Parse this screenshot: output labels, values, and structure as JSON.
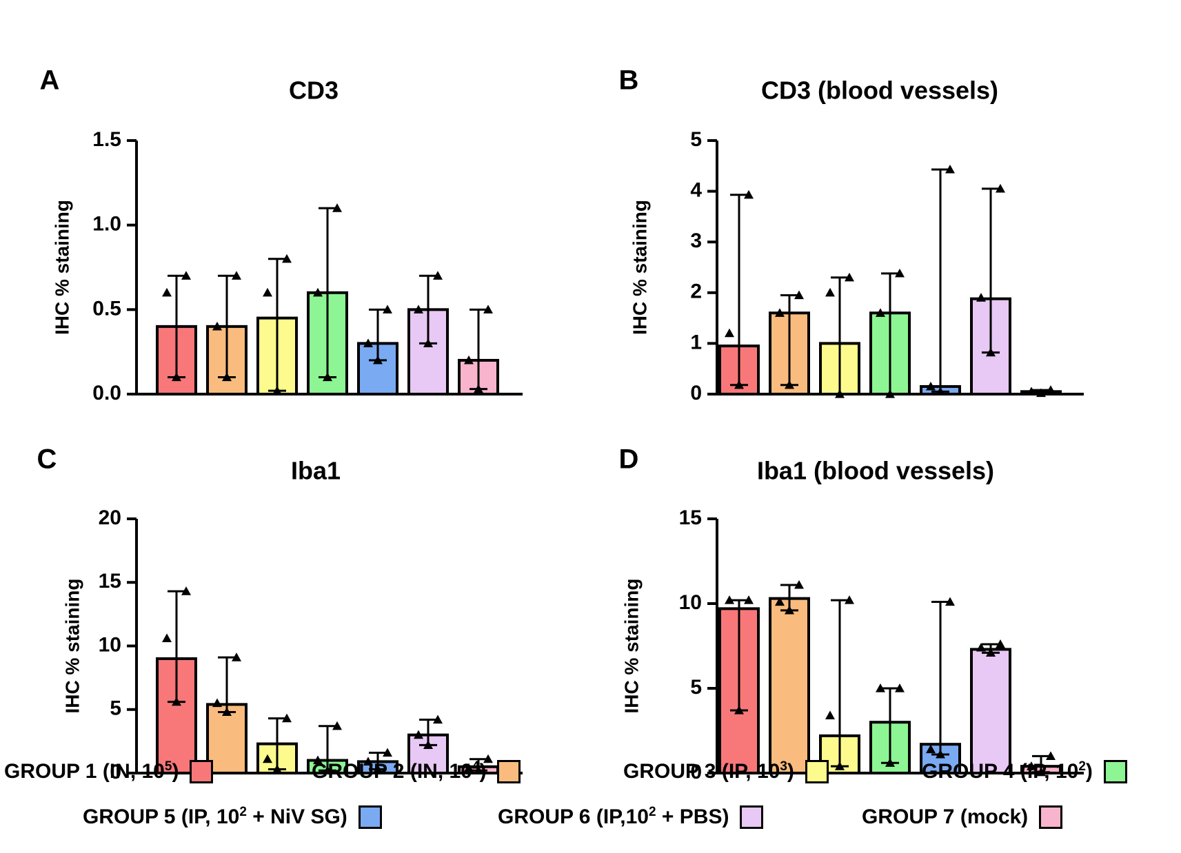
{
  "chart_data": [
    {
      "panel": "A",
      "type": "bar",
      "title": "CD3",
      "ylabel": "IHC %  staining",
      "ylim": [
        0,
        1.5
      ],
      "yticks": [
        0.0,
        0.5,
        1.0,
        1.5
      ],
      "ytick_labels": [
        "0.0",
        "0.5",
        "1.0",
        "1.5"
      ],
      "categories": [
        "GROUP 1",
        "GROUP 2",
        "GROUP 3",
        "GROUP 4",
        "GROUP 5",
        "GROUP 6",
        "GROUP 7"
      ],
      "values": [
        0.4,
        0.4,
        0.45,
        0.6,
        0.3,
        0.5,
        0.2
      ],
      "err_low": [
        0.1,
        0.1,
        0.02,
        0.1,
        0.2,
        0.3,
        0.03
      ],
      "err_high": [
        0.7,
        0.7,
        0.8,
        1.1,
        0.5,
        0.7,
        0.5
      ],
      "points": [
        [
          0.1,
          0.6,
          0.7
        ],
        [
          0.1,
          0.4,
          0.7
        ],
        [
          0.02,
          0.6,
          0.8
        ],
        [
          0.1,
          0.6,
          1.1
        ],
        [
          0.2,
          0.3,
          0.5
        ],
        [
          0.3,
          0.5,
          0.7
        ],
        [
          0.03,
          0.2,
          0.5
        ]
      ]
    },
    {
      "panel": "B",
      "type": "bar",
      "title": "CD3 (blood vessels)",
      "ylabel": "IHC % staining",
      "ylim": [
        0,
        5
      ],
      "yticks": [
        0,
        1,
        2,
        3,
        4,
        5
      ],
      "ytick_labels": [
        "0",
        "1",
        "2",
        "3",
        "4",
        "5"
      ],
      "categories": [
        "GROUP 1",
        "GROUP 2",
        "GROUP 3",
        "GROUP 4",
        "GROUP 5",
        "GROUP 6",
        "GROUP 7"
      ],
      "values": [
        0.95,
        1.6,
        1.0,
        1.6,
        0.15,
        1.88,
        0.05
      ],
      "err_low": [
        0.18,
        0.18,
        0.0,
        0.0,
        0.05,
        0.82,
        0.02
      ],
      "err_high": [
        3.93,
        1.95,
        2.3,
        2.38,
        4.43,
        4.05,
        0.08
      ],
      "points": [
        [
          0.18,
          1.2,
          3.93
        ],
        [
          0.18,
          1.6,
          1.95
        ],
        [
          0.0,
          2.0,
          2.3
        ],
        [
          0.0,
          1.6,
          2.38
        ],
        [
          0.05,
          0.15,
          4.43
        ],
        [
          0.82,
          1.9,
          4.05
        ],
        [
          0.02,
          0.05,
          0.08
        ]
      ]
    },
    {
      "panel": "C",
      "type": "bar",
      "title": "Iba1",
      "ylabel": "IHC % staining",
      "ylim": [
        0,
        20
      ],
      "yticks": [
        0,
        5,
        10,
        15,
        20
      ],
      "ytick_labels": [
        "0",
        "5",
        "10",
        "15",
        "20"
      ],
      "categories": [
        "GROUP 1",
        "GROUP 2",
        "GROUP 3",
        "GROUP 4",
        "GROUP 5",
        "GROUP 6",
        "GROUP 7"
      ],
      "values": [
        9.0,
        5.4,
        2.3,
        1.0,
        0.9,
        3.0,
        0.5
      ],
      "err_low": [
        5.6,
        4.8,
        0.3,
        0.2,
        0.3,
        2.2,
        0.2
      ],
      "err_high": [
        14.3,
        9.1,
        4.3,
        3.7,
        1.6,
        4.2,
        1.1
      ],
      "points": [
        [
          5.6,
          10.6,
          14.3
        ],
        [
          4.8,
          5.5,
          9.1
        ],
        [
          0.3,
          1.1,
          4.3
        ],
        [
          0.2,
          1.0,
          3.7
        ],
        [
          0.3,
          0.9,
          1.6
        ],
        [
          2.2,
          3.0,
          4.2
        ],
        [
          0.2,
          0.4,
          1.1
        ]
      ]
    },
    {
      "panel": "D",
      "type": "bar",
      "title": "Iba1 (blood vessels)",
      "ylabel": "IHC % staining",
      "ylim": [
        0,
        15
      ],
      "yticks": [
        0,
        5,
        10,
        15
      ],
      "ytick_labels": [
        "0",
        "5",
        "10",
        "15"
      ],
      "categories": [
        "GROUP 1",
        "GROUP 2",
        "GROUP 3",
        "GROUP 4",
        "GROUP 5",
        "GROUP 6",
        "GROUP 7"
      ],
      "values": [
        9.7,
        10.3,
        2.2,
        3.0,
        1.7,
        7.3,
        0.4
      ],
      "err_low": [
        3.7,
        9.6,
        0.4,
        0.6,
        1.1,
        7.1,
        0.05
      ],
      "err_high": [
        10.2,
        11.1,
        10.2,
        5.0,
        10.1,
        7.6,
        1.0
      ],
      "points": [
        [
          3.7,
          10.2,
          10.2
        ],
        [
          9.6,
          10.1,
          11.1
        ],
        [
          0.4,
          3.4,
          10.2
        ],
        [
          0.6,
          5.0,
          5.0
        ],
        [
          1.1,
          1.4,
          10.1
        ],
        [
          7.1,
          7.4,
          7.6
        ],
        [
          0.05,
          0.4,
          1.0
        ]
      ]
    }
  ],
  "legend": {
    "groups": [
      {
        "name": "GROUP 1 (IN, 10",
        "sup": "5",
        "tail": ")",
        "color": "#f8787a"
      },
      {
        "name": "GROUP 2 (IN, 10",
        "sup": "4",
        "tail": ")",
        "color": "#f9bc7e"
      },
      {
        "name": "GROUP 3 (IP, 10",
        "sup": "3",
        "tail": ")",
        "color": "#fdfb8d"
      },
      {
        "name": "GROUP 4 (IP, 10",
        "sup": "2",
        "tail": ")",
        "color": "#8df593"
      },
      {
        "name": "GROUP 5 (IP, 10",
        "sup": "2",
        "tail": " + NiV SG)",
        "color": "#7aaaf2"
      },
      {
        "name": "GROUP 6 (IP,10",
        "sup": "2",
        "tail": " + PBS)",
        "color": "#e8c8f4"
      },
      {
        "name": "GROUP 7 (mock)",
        "sup": "",
        "tail": "",
        "color": "#f8b4cc"
      }
    ]
  }
}
